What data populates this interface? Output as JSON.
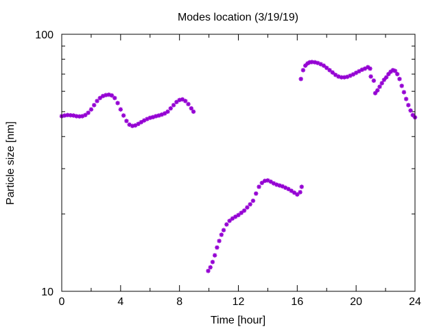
{
  "chart_data": {
    "type": "scatter",
    "title": "Modes location (3/19/19)",
    "xlabel": "Time [hour]",
    "ylabel": "Particle size [nm]",
    "xlim": [
      0,
      24
    ],
    "ylim": [
      10,
      100
    ],
    "yscale": "log",
    "grid": false,
    "legend": "none",
    "x_ticks": [
      0,
      4,
      8,
      12,
      16,
      20,
      24
    ],
    "x_tick_labels": [
      "0",
      "4",
      "8",
      "12",
      "16",
      "20",
      "24"
    ],
    "y_ticks": [
      10,
      100
    ],
    "y_tick_labels": [
      "10",
      "100"
    ],
    "marker_color": "#9400d3",
    "series": [
      {
        "x": [
          0.0,
          0.2,
          0.4,
          0.6,
          0.8,
          1.0,
          1.2,
          1.4,
          1.6,
          1.8,
          2.0,
          2.2,
          2.4,
          2.6,
          2.8,
          3.0,
          3.2,
          3.4,
          3.6,
          3.8,
          4.0,
          4.2,
          4.4,
          4.6,
          4.8,
          5.0,
          5.2,
          5.4,
          5.6,
          5.8,
          6.0,
          6.2,
          6.4,
          6.6,
          6.8,
          7.0,
          7.2,
          7.4,
          7.6,
          7.8,
          8.0,
          8.2,
          8.4,
          8.6,
          8.8,
          8.95
        ],
        "y": [
          48.0,
          48.3,
          48.5,
          48.4,
          48.3,
          48.0,
          47.9,
          48.0,
          48.5,
          49.5,
          51.0,
          53.0,
          55.0,
          56.5,
          57.5,
          58.0,
          58.2,
          57.8,
          56.5,
          54.0,
          51.0,
          48.3,
          46.0,
          44.5,
          44.0,
          44.2,
          44.8,
          45.5,
          46.2,
          46.8,
          47.3,
          47.6,
          48.0,
          48.3,
          48.7,
          49.2,
          50.0,
          51.5,
          53.0,
          54.5,
          55.5,
          55.8,
          55.0,
          53.5,
          51.5,
          50.0
        ]
      },
      {
        "x": [
          9.95,
          10.1,
          10.25,
          10.4,
          10.55,
          10.7,
          10.85,
          11.0,
          11.2,
          11.4,
          11.6,
          11.8,
          12.0,
          12.2,
          12.4,
          12.6,
          12.8,
          13.0,
          13.2,
          13.4,
          13.6,
          13.8,
          14.0,
          14.2,
          14.4,
          14.6,
          14.8,
          15.0,
          15.2,
          15.4,
          15.6,
          15.8,
          16.0,
          16.2,
          16.3
        ],
        "y": [
          12.0,
          12.4,
          13.0,
          13.8,
          14.8,
          15.7,
          16.6,
          17.3,
          18.2,
          18.8,
          19.2,
          19.5,
          19.8,
          20.2,
          20.6,
          21.2,
          21.8,
          22.5,
          24.0,
          25.5,
          26.4,
          26.9,
          27.0,
          26.7,
          26.3,
          26.0,
          25.8,
          25.6,
          25.3,
          25.0,
          24.6,
          24.2,
          23.8,
          24.3,
          25.5
        ]
      },
      {
        "x": [
          16.25,
          16.4,
          16.55,
          16.7,
          16.85,
          17.0,
          17.2,
          17.4,
          17.6,
          17.8,
          18.0,
          18.2,
          18.4,
          18.6,
          18.8,
          19.0,
          19.2,
          19.4,
          19.6,
          19.8,
          20.0,
          20.2,
          20.4,
          20.6,
          20.8,
          20.95
        ],
        "y": [
          67.0,
          72.5,
          75.5,
          77.0,
          77.8,
          78.0,
          77.8,
          77.3,
          76.5,
          75.5,
          74.0,
          72.5,
          71.0,
          69.5,
          68.5,
          68.0,
          68.0,
          68.3,
          69.0,
          69.8,
          70.8,
          71.8,
          72.8,
          73.5,
          74.5,
          73.5
        ]
      },
      {
        "x": [
          21.0,
          21.2,
          21.3,
          21.45,
          21.6,
          21.75,
          21.9,
          22.05,
          22.2,
          22.35,
          22.5,
          22.65,
          22.8,
          22.95,
          23.1,
          23.25,
          23.4,
          23.55,
          23.7,
          23.85,
          24.0
        ],
        "y": [
          68.5,
          66.0,
          59.0,
          60.5,
          62.5,
          64.5,
          66.5,
          68.0,
          70.0,
          71.5,
          72.5,
          72.0,
          70.0,
          67.0,
          63.0,
          59.5,
          56.0,
          53.0,
          50.5,
          48.5,
          47.5
        ]
      }
    ]
  }
}
